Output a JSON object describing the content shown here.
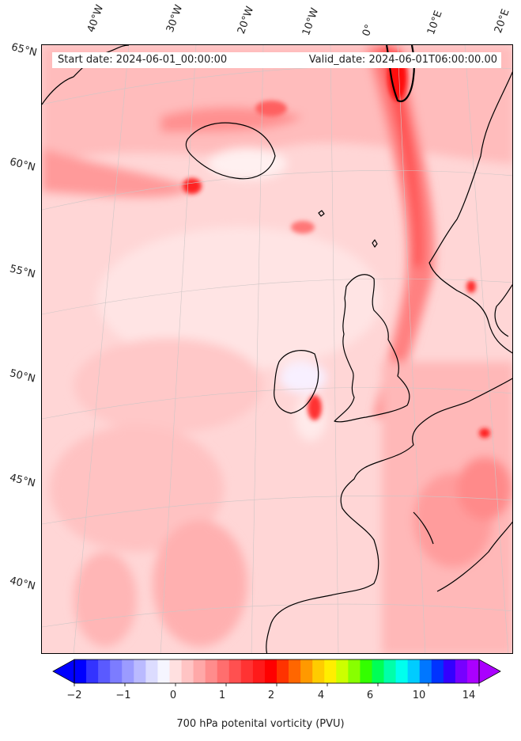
{
  "header": {
    "start_date": "Start date: 2024-06-01_00:00:00",
    "valid_date": "Valid_date: 2024-06-01T06:00:00.00"
  },
  "lon_labels": [
    "40°W",
    "30°W",
    "20°W",
    "10°W",
    "0°",
    "10°E",
    "20°E"
  ],
  "lat_labels": [
    "65°N",
    "60°N",
    "55°N",
    "50°N",
    "45°N",
    "40°N"
  ],
  "colorbar": {
    "title": "700 hPa potenital vorticity (PVU)",
    "tick_labels": [
      "−2",
      "−1",
      "0",
      "1",
      "2",
      "4",
      "6",
      "10",
      "14"
    ],
    "colors": [
      "#0000ff",
      "#3333ff",
      "#5a5aff",
      "#7c7cff",
      "#9b9bff",
      "#babaff",
      "#dcdcff",
      "#f5f5ff",
      "#ffe0e0",
      "#ffc4c4",
      "#ffa8a8",
      "#ff8c8c",
      "#ff6e6e",
      "#ff5050",
      "#ff3333",
      "#ff1a1a",
      "#ff0000",
      "#ff3300",
      "#ff6600",
      "#ff9900",
      "#ffcc00",
      "#ffee00",
      "#ccff00",
      "#88ff00",
      "#33ff00",
      "#00ff55",
      "#00ffaa",
      "#00ffee",
      "#00ccff",
      "#0077ff",
      "#0033ff",
      "#3300ff",
      "#7700ff",
      "#aa00ff"
    ]
  }
}
